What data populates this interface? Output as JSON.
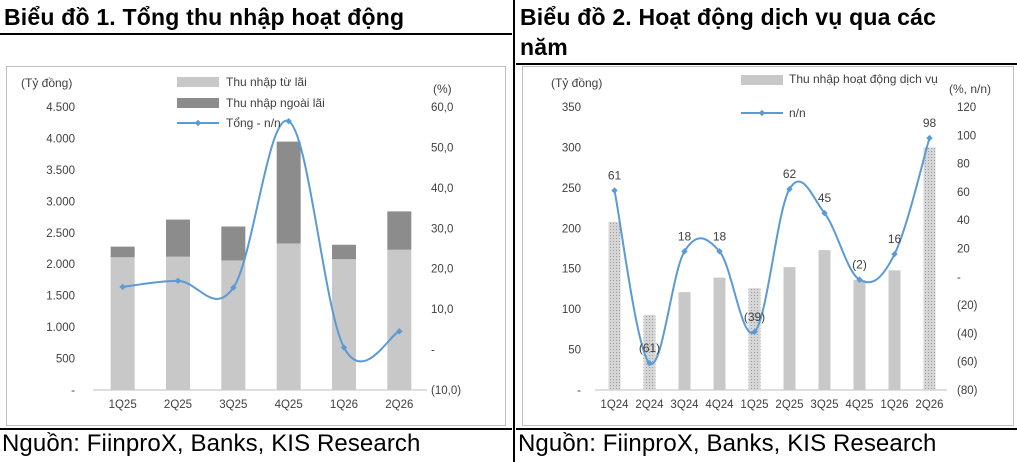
{
  "charts": [
    {
      "title": "Biểu đồ 1. Tổng thu nhập hoạt động",
      "source": "Nguồn: FiinproX, Banks, KIS Research",
      "left_unit": "(Tỷ đồng)",
      "right_unit": "(%)",
      "left_ticks": [
        "-",
        "500",
        "1.000",
        "1.500",
        "2.000",
        "2.500",
        "3.000",
        "3.500",
        "4.000",
        "4.500"
      ],
      "right_ticks": [
        "(10,0)",
        "-",
        "10,0",
        "20,0",
        "30,0",
        "40,0",
        "50,0",
        "60,0"
      ],
      "legend": [
        "Thu nhập từ lãi",
        "Thu nhập ngoài lãi",
        "Tổng - n/n"
      ],
      "colors": {
        "interest": "#c8c8c8",
        "noninterest": "#8c8c8c",
        "line": "#5b9bd5"
      }
    },
    {
      "title": "Biểu đồ 2. Hoạt động dịch vụ qua các năm",
      "source": "Nguồn: FiinproX, Banks, KIS Research",
      "left_unit": "(Tỷ đồng)",
      "right_unit": "(%, n/n)",
      "left_ticks": [
        "-",
        "50",
        "100",
        "150",
        "200",
        "250",
        "300",
        "350"
      ],
      "right_ticks": [
        "(80)",
        "(60)",
        "(40)",
        "(20)",
        "-",
        "20",
        "40",
        "60",
        "80",
        "100",
        "120"
      ],
      "legend": [
        "Thu nhập hoạt động dịch vụ",
        "n/n"
      ],
      "colors": {
        "bar": "#c8c8c8",
        "line": "#5b9bd5"
      }
    }
  ],
  "chart_data": [
    {
      "type": "bar",
      "stacked": true,
      "categories": [
        "1Q25",
        "2Q25",
        "3Q25",
        "4Q25",
        "1Q26",
        "2Q26"
      ],
      "series": [
        {
          "name": "Thu nhập từ lãi",
          "values": [
            2110,
            2120,
            2060,
            2330,
            2080,
            2230
          ]
        },
        {
          "name": "Thu nhập ngoài lãi",
          "values": [
            170,
            590,
            540,
            1620,
            230,
            610
          ]
        },
        {
          "name": "Tổng - n/n",
          "type": "line",
          "axis": "right",
          "values": [
            15.5,
            17.0,
            15.3,
            56.5,
            0.5,
            4.5
          ]
        }
      ],
      "ylim": [
        0,
        4500
      ],
      "y2lim": [
        -10,
        60
      ],
      "legend_position": "top-center",
      "grid": false
    },
    {
      "type": "bar",
      "categories": [
        "1Q24",
        "2Q24",
        "3Q24",
        "4Q24",
        "1Q25",
        "2Q25",
        "3Q25",
        "4Q25",
        "1Q26",
        "2Q26"
      ],
      "series": [
        {
          "name": "Thu nhập hoạt động dịch vụ",
          "values": [
            208,
            93,
            121,
            139,
            126,
            152,
            173,
            136,
            148,
            300
          ]
        },
        {
          "name": "n/n",
          "type": "line",
          "axis": "right",
          "values": [
            61,
            -61,
            18,
            18,
            -39,
            62,
            45,
            -2,
            16,
            98
          ],
          "labels": [
            "61",
            "(61)",
            "18",
            "18",
            "(39)",
            "62",
            "45",
            "(2)",
            "16",
            "98"
          ]
        }
      ],
      "ylim": [
        0,
        350
      ],
      "y2lim": [
        -80,
        120
      ],
      "legend_position": "top-center",
      "grid": false
    }
  ]
}
